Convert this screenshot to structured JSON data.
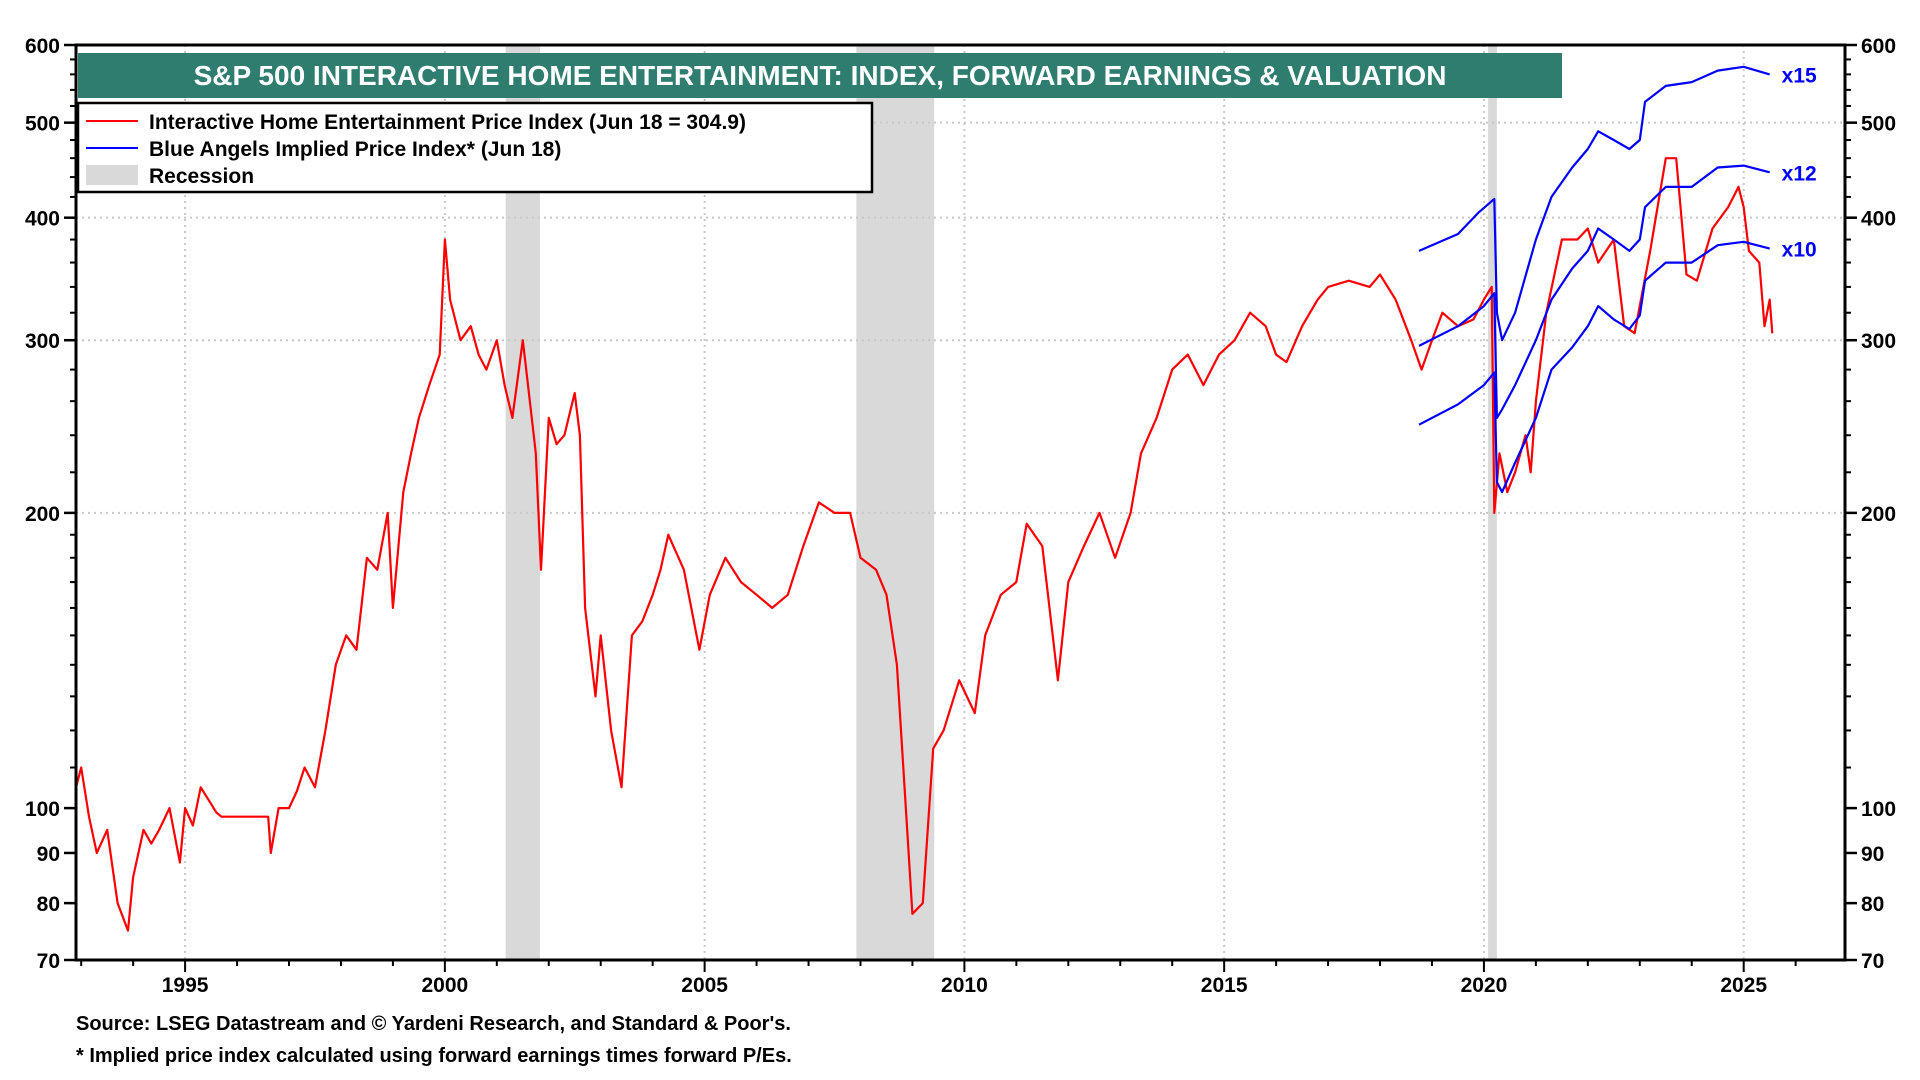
{
  "chart_data": {
    "type": "line",
    "title": "S&P 500 INTERACTIVE HOME ENTERTAINMENT: INDEX, FORWARD EARNINGS & VALUATION",
    "title_bg": "#2e7d6f",
    "y_scale": "log",
    "ylim": [
      70,
      600
    ],
    "xlim": [
      1992.9,
      2026.95
    ],
    "y_ticks": [
      70,
      80,
      90,
      100,
      200,
      300,
      400,
      500,
      600
    ],
    "y_grid": [
      200,
      300,
      400,
      500
    ],
    "x_ticks": [
      1995,
      2000,
      2005,
      2010,
      2015,
      2020,
      2025
    ],
    "grid": true,
    "legend_placement": "top-left",
    "legend": [
      {
        "label": "Interactive Home Entertainment Price Index (Jun 18 = 304.9)",
        "color": "#ff0000",
        "kind": "line"
      },
      {
        "label": "Blue Angels Implied Price Index* (Jun 18)",
        "color": "#0000ff",
        "kind": "line"
      },
      {
        "label": "Recession",
        "color": "#d9d9d9",
        "kind": "box"
      }
    ],
    "recessions": [
      [
        2001.17,
        2001.83
      ],
      [
        2007.92,
        2009.42
      ],
      [
        2020.08,
        2020.25
      ]
    ],
    "series": [
      {
        "name": "Interactive Home Entertainment Price Index",
        "color": "#ff0000",
        "points": [
          [
            1992.9,
            105
          ],
          [
            1993.0,
            110
          ],
          [
            1993.15,
            98
          ],
          [
            1993.3,
            90
          ],
          [
            1993.5,
            95
          ],
          [
            1993.7,
            80
          ],
          [
            1993.9,
            75
          ],
          [
            1994.0,
            85
          ],
          [
            1994.2,
            95
          ],
          [
            1994.35,
            92
          ],
          [
            1994.5,
            95
          ],
          [
            1994.7,
            100
          ],
          [
            1994.9,
            88
          ],
          [
            1995.0,
            100
          ],
          [
            1995.15,
            96
          ],
          [
            1995.3,
            105
          ],
          [
            1995.5,
            101
          ],
          [
            1995.6,
            99
          ],
          [
            1995.7,
            98
          ],
          [
            1996.6,
            98
          ],
          [
            1996.65,
            90
          ],
          [
            1996.8,
            100
          ],
          [
            1997.0,
            100
          ],
          [
            1997.15,
            104
          ],
          [
            1997.3,
            110
          ],
          [
            1997.5,
            105
          ],
          [
            1997.7,
            120
          ],
          [
            1997.9,
            140
          ],
          [
            1998.1,
            150
          ],
          [
            1998.3,
            145
          ],
          [
            1998.5,
            180
          ],
          [
            1998.7,
            175
          ],
          [
            1998.9,
            200
          ],
          [
            1999.0,
            160
          ],
          [
            1999.2,
            210
          ],
          [
            1999.35,
            230
          ],
          [
            1999.5,
            250
          ],
          [
            1999.7,
            270
          ],
          [
            1999.9,
            290
          ],
          [
            2000.0,
            380
          ],
          [
            2000.1,
            330
          ],
          [
            2000.3,
            300
          ],
          [
            2000.5,
            310
          ],
          [
            2000.65,
            290
          ],
          [
            2000.8,
            280
          ],
          [
            2001.0,
            300
          ],
          [
            2001.15,
            270
          ],
          [
            2001.3,
            250
          ],
          [
            2001.5,
            300
          ],
          [
            2001.6,
            270
          ],
          [
            2001.75,
            230
          ],
          [
            2001.85,
            175
          ],
          [
            2002.0,
            250
          ],
          [
            2002.15,
            235
          ],
          [
            2002.3,
            240
          ],
          [
            2002.5,
            265
          ],
          [
            2002.6,
            240
          ],
          [
            2002.7,
            160
          ],
          [
            2002.9,
            130
          ],
          [
            2003.0,
            150
          ],
          [
            2003.2,
            120
          ],
          [
            2003.4,
            105
          ],
          [
            2003.6,
            150
          ],
          [
            2003.8,
            155
          ],
          [
            2004.0,
            165
          ],
          [
            2004.15,
            175
          ],
          [
            2004.3,
            190
          ],
          [
            2004.6,
            175
          ],
          [
            2004.9,
            145
          ],
          [
            2005.1,
            165
          ],
          [
            2005.4,
            180
          ],
          [
            2005.7,
            170
          ],
          [
            2006.0,
            165
          ],
          [
            2006.3,
            160
          ],
          [
            2006.6,
            165
          ],
          [
            2006.9,
            185
          ],
          [
            2007.2,
            205
          ],
          [
            2007.5,
            200
          ],
          [
            2007.8,
            200
          ],
          [
            2008.0,
            180
          ],
          [
            2008.3,
            175
          ],
          [
            2008.5,
            165
          ],
          [
            2008.7,
            140
          ],
          [
            2008.9,
            95
          ],
          [
            2009.0,
            78
          ],
          [
            2009.2,
            80
          ],
          [
            2009.4,
            115
          ],
          [
            2009.6,
            120
          ],
          [
            2009.9,
            135
          ],
          [
            2010.2,
            125
          ],
          [
            2010.4,
            150
          ],
          [
            2010.7,
            165
          ],
          [
            2011.0,
            170
          ],
          [
            2011.2,
            195
          ],
          [
            2011.5,
            185
          ],
          [
            2011.7,
            150
          ],
          [
            2011.8,
            135
          ],
          [
            2012.0,
            170
          ],
          [
            2012.3,
            185
          ],
          [
            2012.6,
            200
          ],
          [
            2012.9,
            180
          ],
          [
            2013.2,
            200
          ],
          [
            2013.4,
            230
          ],
          [
            2013.7,
            250
          ],
          [
            2014.0,
            280
          ],
          [
            2014.3,
            290
          ],
          [
            2014.6,
            270
          ],
          [
            2014.9,
            290
          ],
          [
            2015.2,
            300
          ],
          [
            2015.5,
            320
          ],
          [
            2015.8,
            310
          ],
          [
            2016.0,
            290
          ],
          [
            2016.2,
            285
          ],
          [
            2016.5,
            310
          ],
          [
            2016.8,
            330
          ],
          [
            2017.0,
            340
          ],
          [
            2017.4,
            345
          ],
          [
            2017.8,
            340
          ],
          [
            2018.0,
            350
          ],
          [
            2018.3,
            330
          ],
          [
            2018.6,
            300
          ],
          [
            2018.8,
            280
          ],
          [
            2019.0,
            300
          ],
          [
            2019.2,
            320
          ],
          [
            2019.5,
            310
          ],
          [
            2019.8,
            315
          ],
          [
            2020.0,
            330
          ],
          [
            2020.15,
            340
          ],
          [
            2020.2,
            200
          ],
          [
            2020.3,
            230
          ],
          [
            2020.45,
            210
          ],
          [
            2020.6,
            220
          ],
          [
            2020.8,
            240
          ],
          [
            2020.9,
            220
          ],
          [
            2021.0,
            260
          ],
          [
            2021.2,
            320
          ],
          [
            2021.5,
            380
          ],
          [
            2021.8,
            380
          ],
          [
            2022.0,
            390
          ],
          [
            2022.2,
            360
          ],
          [
            2022.5,
            380
          ],
          [
            2022.7,
            310
          ],
          [
            2022.9,
            305
          ],
          [
            2023.2,
            370
          ],
          [
            2023.5,
            460
          ],
          [
            2023.7,
            460
          ],
          [
            2023.9,
            350
          ],
          [
            2024.1,
            345
          ],
          [
            2024.4,
            390
          ],
          [
            2024.7,
            410
          ],
          [
            2024.9,
            430
          ],
          [
            2025.0,
            410
          ],
          [
            2025.1,
            370
          ],
          [
            2025.3,
            360
          ],
          [
            2025.4,
            310
          ],
          [
            2025.5,
            330
          ],
          [
            2025.55,
            304.9
          ]
        ]
      },
      {
        "name": "x15",
        "color": "#0000ff",
        "points": [
          [
            2018.75,
            370
          ],
          [
            2019.5,
            385
          ],
          [
            2019.9,
            405
          ],
          [
            2020.2,
            418
          ],
          [
            2020.25,
            320
          ],
          [
            2020.35,
            300
          ],
          [
            2020.6,
            320
          ],
          [
            2021.0,
            380
          ],
          [
            2021.3,
            420
          ],
          [
            2021.7,
            450
          ],
          [
            2022.0,
            470
          ],
          [
            2022.2,
            490
          ],
          [
            2022.5,
            480
          ],
          [
            2022.8,
            470
          ],
          [
            2023.0,
            480
          ],
          [
            2023.1,
            525
          ],
          [
            2023.5,
            545
          ],
          [
            2024.0,
            550
          ],
          [
            2024.5,
            565
          ],
          [
            2025.0,
            570
          ],
          [
            2025.5,
            560
          ]
        ]
      },
      {
        "name": "x12",
        "color": "#0000ff",
        "points": [
          [
            2018.75,
            296
          ],
          [
            2019.5,
            310
          ],
          [
            2020.0,
            325
          ],
          [
            2020.2,
            335
          ],
          [
            2020.25,
            250
          ],
          [
            2020.35,
            255
          ],
          [
            2020.6,
            270
          ],
          [
            2021.0,
            300
          ],
          [
            2021.3,
            330
          ],
          [
            2021.7,
            355
          ],
          [
            2022.0,
            370
          ],
          [
            2022.2,
            390
          ],
          [
            2022.5,
            380
          ],
          [
            2022.8,
            370
          ],
          [
            2023.0,
            380
          ],
          [
            2023.1,
            410
          ],
          [
            2023.5,
            430
          ],
          [
            2024.0,
            430
          ],
          [
            2024.5,
            450
          ],
          [
            2025.0,
            452
          ],
          [
            2025.5,
            445
          ]
        ]
      },
      {
        "name": "x10",
        "color": "#0000ff",
        "points": [
          [
            2018.75,
            246
          ],
          [
            2019.5,
            258
          ],
          [
            2020.0,
            270
          ],
          [
            2020.2,
            278
          ],
          [
            2020.25,
            215
          ],
          [
            2020.35,
            210
          ],
          [
            2020.6,
            225
          ],
          [
            2021.0,
            250
          ],
          [
            2021.3,
            280
          ],
          [
            2021.7,
            295
          ],
          [
            2022.0,
            310
          ],
          [
            2022.2,
            325
          ],
          [
            2022.5,
            315
          ],
          [
            2022.8,
            308
          ],
          [
            2023.0,
            318
          ],
          [
            2023.1,
            345
          ],
          [
            2023.5,
            360
          ],
          [
            2024.0,
            360
          ],
          [
            2024.5,
            375
          ],
          [
            2025.0,
            378
          ],
          [
            2025.5,
            372
          ]
        ]
      }
    ],
    "annotations": [
      "x15",
      "x12",
      "x10"
    ]
  },
  "footer": {
    "source": "Source: LSEG Datastream and © Yardeni Research, and Standard & Poor's.",
    "note": "* Implied price index calculated using forward earnings times forward P/Es."
  }
}
